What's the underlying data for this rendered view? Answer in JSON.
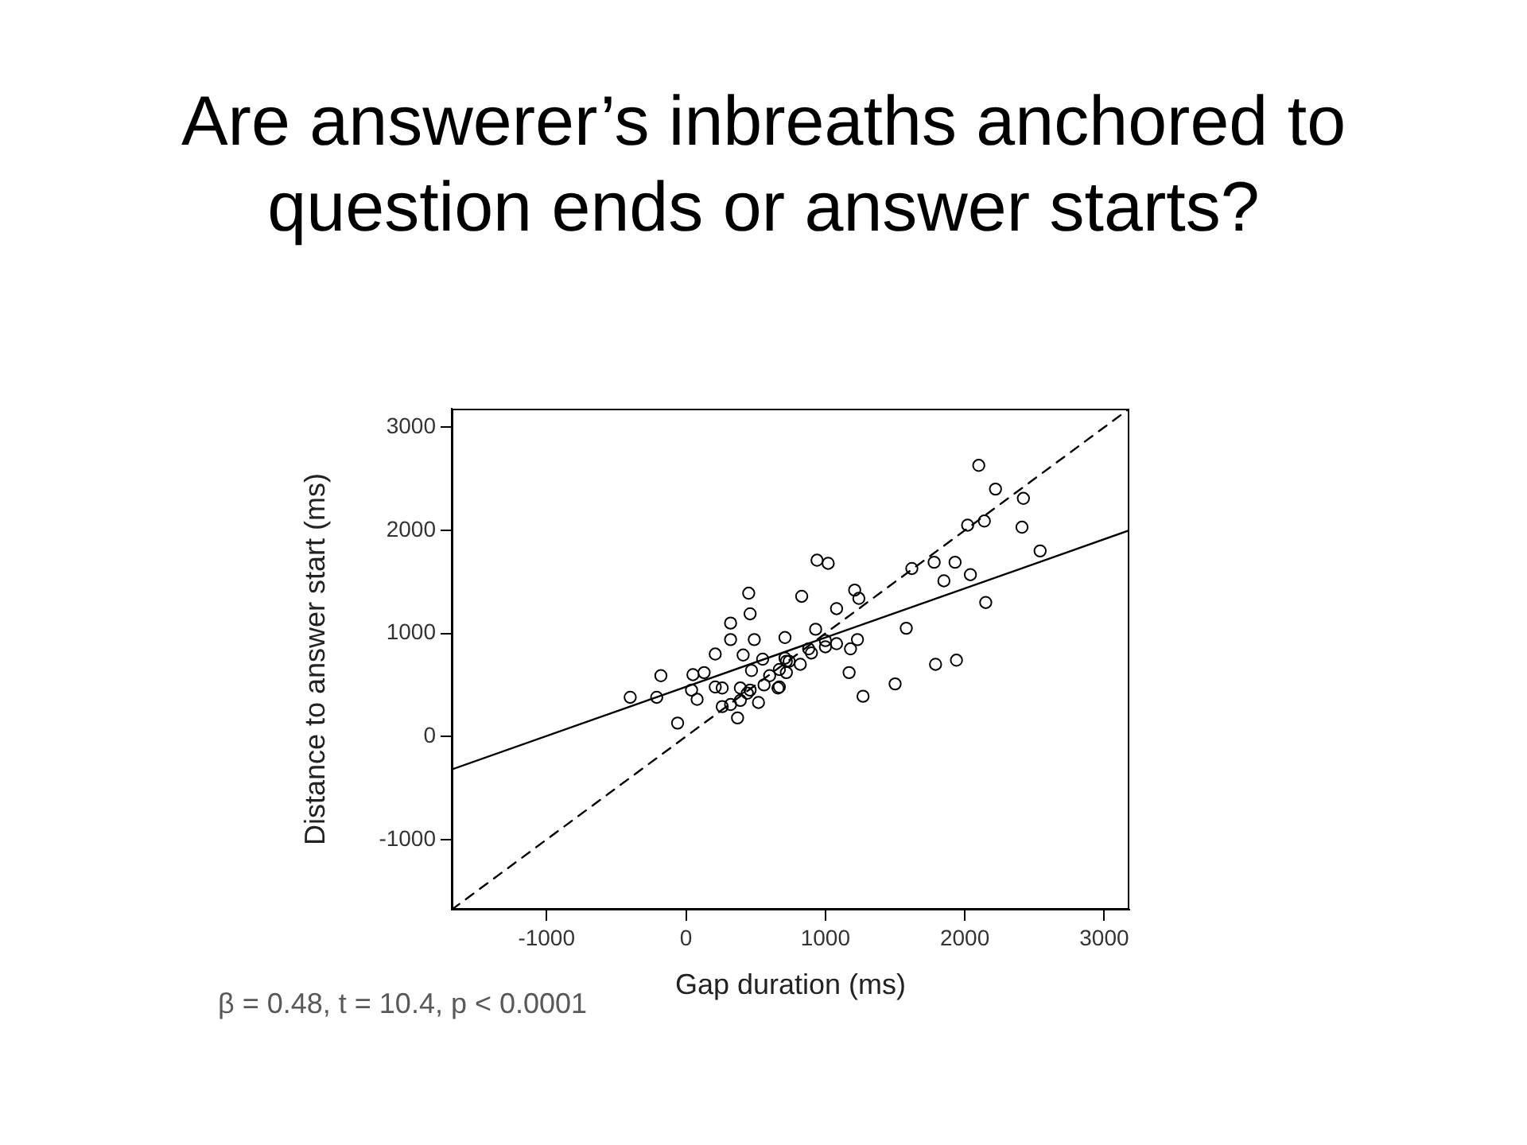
{
  "chart_data": {
    "type": "scatter",
    "title": "Are answerer’s inbreaths anchored to question ends or answer starts?",
    "xlabel": "Gap duration (ms)",
    "ylabel": "Distance to answer start (ms)",
    "annotations": [
      "β = 0.48, t = 10.4, p < 0.0001"
    ],
    "xlim": [
      -1680,
      3180
    ],
    "ylim": [
      -1680,
      3180
    ],
    "xticks": [
      -1000,
      0,
      1000,
      2000,
      3000
    ],
    "yticks": [
      -1000,
      0,
      1000,
      2000,
      3000
    ],
    "grid": false,
    "legend": false,
    "series": [
      {
        "color": "#000000",
        "marker": "circle",
        "x": [
          -400,
          -210,
          -180,
          -60,
          40,
          50,
          80,
          130,
          210,
          210,
          260,
          260,
          320,
          320,
          320,
          370,
          390,
          390,
          410,
          440,
          460,
          470,
          460,
          450,
          490,
          520,
          550,
          560,
          600,
          660,
          670,
          670,
          710,
          710,
          720,
          720,
          740,
          820,
          830,
          880,
          900,
          930,
          940,
          1000,
          1000,
          1020,
          1080,
          1080,
          1170,
          1180,
          1210,
          1230,
          1240,
          1270,
          1500,
          1580,
          1620,
          1780,
          1790,
          1850,
          1930,
          1940,
          2020,
          2040,
          2100,
          2140,
          2150,
          2220,
          2410,
          2420,
          2540
        ],
        "values": [
          380,
          380,
          590,
          130,
          450,
          600,
          360,
          620,
          800,
          480,
          470,
          290,
          310,
          940,
          1100,
          180,
          470,
          350,
          790,
          420,
          450,
          640,
          1190,
          1390,
          940,
          330,
          750,
          500,
          590,
          470,
          650,
          480,
          960,
          760,
          620,
          730,
          730,
          700,
          1360,
          850,
          810,
          1040,
          1710,
          870,
          930,
          1680,
          1240,
          900,
          620,
          850,
          1420,
          940,
          1340,
          390,
          510,
          1050,
          1630,
          1690,
          700,
          1510,
          1690,
          740,
          2050,
          1570,
          2630,
          2090,
          1300,
          2400,
          2030,
          2310,
          1800
        ]
      },
      {
        "type": "line",
        "color": "#000000",
        "marker": "none",
        "line_style": "solid",
        "x": [
          -1680,
          3180
        ],
        "values": [
          -320,
          2000
        ]
      },
      {
        "type": "line",
        "color": "#000000",
        "marker": "none",
        "line_style": "dashed",
        "x": [
          -1680,
          3180
        ],
        "values": [
          -1680,
          3180
        ]
      }
    ]
  }
}
